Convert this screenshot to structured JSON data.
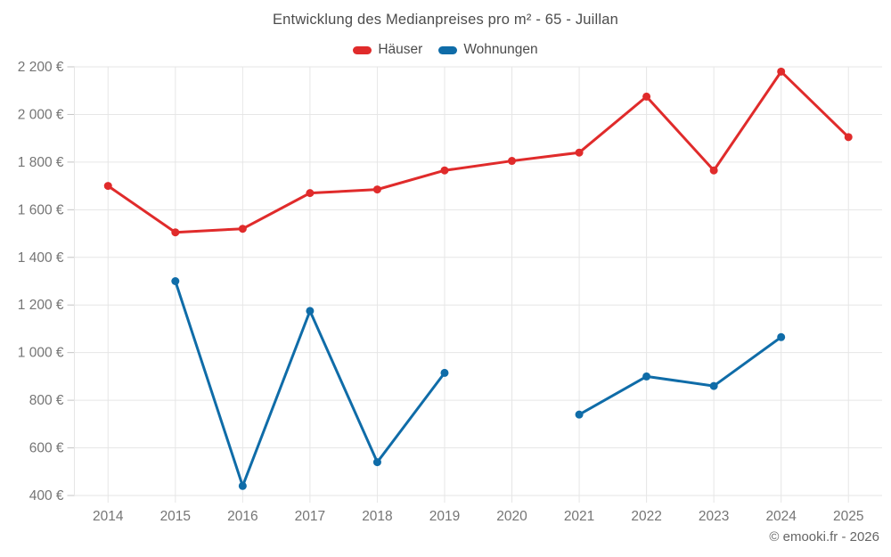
{
  "chart_data": {
    "type": "line",
    "title": "Entwicklung des Medianpreises pro m² - 65 - Juillan",
    "categories": [
      "2014",
      "2015",
      "2016",
      "2017",
      "2018",
      "2019",
      "2020",
      "2021",
      "2022",
      "2023",
      "2024",
      "2025"
    ],
    "series": [
      {
        "name": "Häuser",
        "color": "#e02b2b",
        "values": [
          1700,
          1505,
          1520,
          1670,
          1685,
          1765,
          1805,
          1840,
          2075,
          1765,
          2180,
          1905
        ]
      },
      {
        "name": "Wohnungen",
        "color": "#0f6ca8",
        "values": [
          null,
          1300,
          440,
          1175,
          540,
          915,
          null,
          740,
          900,
          860,
          1065,
          null
        ]
      }
    ],
    "ylim": [
      400,
      2200
    ],
    "y_ticks": [
      {
        "value": 400,
        "label": "400 €"
      },
      {
        "value": 600,
        "label": "600 €"
      },
      {
        "value": 800,
        "label": "800 €"
      },
      {
        "value": 1000,
        "label": "1 000 €"
      },
      {
        "value": 1200,
        "label": "1 200 €"
      },
      {
        "value": 1400,
        "label": "1 400 €"
      },
      {
        "value": 1600,
        "label": "1 600 €"
      },
      {
        "value": 1800,
        "label": "1 800 €"
      },
      {
        "value": 2000,
        "label": "2 000 €"
      },
      {
        "value": 2200,
        "label": "2 200 €"
      }
    ],
    "grid": true,
    "legend_position": "top",
    "currency_suffix": "€"
  },
  "footer": {
    "copyright": "© emooki.fr - 2026"
  },
  "colors": {
    "grid": "#e6e6e6",
    "tick": "#c4c4c4",
    "axis_text": "#757575",
    "title_text": "#4c4c4c"
  }
}
